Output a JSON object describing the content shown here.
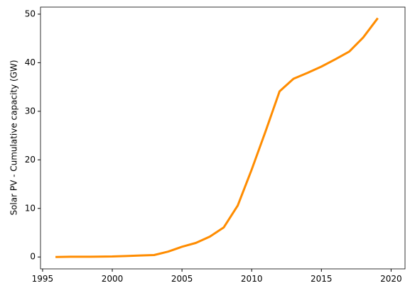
{
  "chart_data": {
    "type": "line",
    "y_label": "Solar PV - Cumulative capacity (GW)",
    "x": [
      1996,
      1997,
      1998,
      1999,
      2000,
      2001,
      2002,
      2003,
      2004,
      2005,
      2006,
      2007,
      2008,
      2009,
      2010,
      2011,
      2012,
      2013,
      2014,
      2015,
      2016,
      2017,
      2018,
      2019
    ],
    "series": [
      {
        "color": "#ff8c00",
        "values": [
          0.0,
          0.05,
          0.05,
          0.07,
          0.1,
          0.2,
          0.3,
          0.4,
          1.1,
          2.1,
          2.9,
          4.2,
          6.1,
          10.6,
          18.0,
          25.9,
          34.1,
          36.7,
          37.9,
          39.2,
          40.7,
          42.3,
          45.2,
          49.0
        ]
      }
    ],
    "xlim": [
      1994.85,
      2021
    ],
    "xticks": [
      1995,
      2000,
      2005,
      2010,
      2015,
      2020
    ],
    "ylim": [
      -2.45,
      51.45
    ],
    "yticks": [
      0,
      10,
      20,
      30,
      40,
      50
    ],
    "grid": false
  }
}
